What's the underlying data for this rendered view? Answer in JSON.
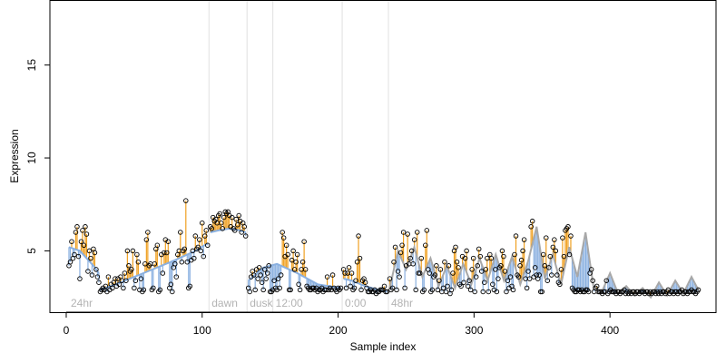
{
  "chart_data": {
    "type": "scatter",
    "title": "",
    "xlabel": "Sample index",
    "ylabel": "Expression",
    "xlim": [
      -12,
      478
    ],
    "ylim": [
      1.7,
      18.5
    ],
    "x_ticks": [
      0,
      100,
      200,
      300,
      400
    ],
    "y_ticks": [
      5,
      10,
      15
    ],
    "grid": false,
    "legend": "none",
    "colors": {
      "stem_above": "#f0a020",
      "stem_below": "#8ab0e0",
      "fit_line_early": "#8ab0e0",
      "fit_line_late": "#a8a8a8",
      "points": "#000000",
      "markers": "#e0e0e0",
      "annotations": "#b3b3b3"
    },
    "markers": [
      {
        "x": 105,
        "label": "dawn"
      },
      {
        "x": 133,
        "label": "dusk"
      },
      {
        "x": 152,
        "label": "12:00"
      },
      {
        "x": 203,
        "label": "0:00"
      },
      {
        "x": 237,
        "label": "48hr"
      }
    ],
    "start_label": {
      "x": 2,
      "label": "24hr"
    },
    "segments": [
      {
        "name": "",
        "x_start": 2,
        "x_end": 24,
        "y": [
          4.2,
          4.4,
          5.5,
          4.6,
          4.8,
          6.0,
          6.3,
          4.7,
          3.5,
          5.5,
          6.1,
          5.3,
          6.3,
          5.9,
          3.9,
          5.0,
          4.6,
          3.7,
          5.1,
          4.9,
          4.0,
          3.6,
          3.3
        ]
      },
      {
        "name": "",
        "x_start": 25,
        "x_end": 104,
        "y": [
          2.8,
          2.9,
          3.0,
          2.9,
          3.1,
          2.8,
          3.6,
          2.9,
          3.2,
          3.0,
          3.3,
          3.5,
          3.1,
          3.5,
          3.2,
          3.6,
          3.4,
          3.0,
          3.8,
          3.4,
          5.0,
          4.2,
          3.9,
          4.0,
          5.0,
          3.0,
          3.4,
          4.8,
          4.4,
          2.9,
          3.5,
          2.8,
          2.9,
          4.3,
          5.6,
          6.0,
          4.2,
          4.3,
          2.9,
          3.0,
          4.3,
          5.1,
          5.3,
          2.8,
          2.9,
          4.8,
          3.8,
          4.9,
          5.6,
          4.9,
          5.5,
          3.0,
          3.2,
          2.8,
          4.1,
          4.3,
          3.6,
          4.8,
          5.0,
          6.0,
          4.4,
          5.0,
          5.1,
          7.7,
          4.4,
          3.0,
          3.1,
          4.5,
          5.0,
          4.6,
          5.8,
          5.1,
          5.2,
          5.6,
          5.0,
          6.5,
          4.7,
          5.8,
          6.1,
          5.3
        ]
      },
      {
        "name": "",
        "x_start": 106,
        "x_end": 132,
        "y": [
          6.3,
          6.2,
          6.8,
          6.6,
          6.7,
          6.5,
          6.9,
          7.0,
          6.5,
          6.2,
          6.8,
          7.1,
          7.0,
          7.1,
          6.9,
          6.3,
          6.8,
          6.2,
          6.1,
          6.7,
          6.4,
          6.9,
          6.6,
          6.0,
          6.5,
          6.3,
          5.8
        ]
      },
      {
        "name": "",
        "x_start": 134,
        "x_end": 202,
        "y": [
          3.0,
          2.8,
          3.6,
          3.9,
          3.7,
          2.9,
          4.0,
          3.5,
          4.1,
          3.7,
          3.3,
          2.9,
          4.0,
          3.5,
          3.8,
          4.2,
          2.8,
          2.8,
          2.9,
          3.4,
          3.0,
          2.9,
          3.5,
          3.0,
          3.7,
          6.0,
          5.7,
          4.7,
          5.3,
          4.8,
          2.9,
          2.9,
          4.5,
          5.0,
          4.0,
          4.4,
          4.8,
          3.2,
          2.9,
          4.0,
          4.4,
          5.5,
          4.0,
          3.1,
          3.0,
          2.9,
          2.9,
          3.0,
          3.0,
          2.9,
          3.0,
          2.8,
          2.9,
          2.9,
          3.0,
          2.8,
          2.9,
          2.9,
          3.6,
          2.9,
          3.0,
          2.9,
          3.7,
          3.0,
          2.9,
          2.8,
          3.0,
          2.9,
          3.0
        ]
      },
      {
        "name": "",
        "x_start": 204,
        "x_end": 236,
        "y": [
          4.0,
          3.8,
          3.0,
          3.8,
          4.1,
          3.1,
          3.8,
          2.9,
          3.0,
          3.4,
          4.4,
          5.8,
          4.6,
          2.9,
          3.4,
          3.5,
          3.3,
          3.0,
          2.8,
          2.8,
          2.9,
          2.8,
          2.8,
          2.9,
          2.7,
          2.8,
          2.8,
          2.9,
          2.9,
          2.9,
          3.1,
          2.8,
          2.8
        ]
      },
      {
        "name": "",
        "x_start": 238,
        "x_end": 465,
        "y": [
          3.5,
          2.9,
          3.0,
          4.4,
          5.2,
          2.9,
          3.9,
          3.6,
          4.9,
          5.3,
          6.0,
          3.0,
          4.2,
          5.9,
          4.3,
          4.6,
          5.0,
          4.3,
          5.6,
          2.9,
          6.0,
          3.8,
          3.8,
          4.6,
          2.8,
          2.9,
          5.3,
          6.1,
          4.0,
          3.8,
          2.8,
          2.9,
          3.6,
          3.7,
          4.2,
          2.9,
          3.4,
          4.0,
          2.8,
          3.0,
          4.4,
          2.8,
          3.1,
          4.2,
          2.7,
          2.9,
          3.8,
          5.0,
          5.2,
          4.4,
          4.1,
          3.2,
          3.1,
          4.7,
          3.3,
          4.6,
          5.0,
          3.1,
          3.4,
          2.9,
          4.0,
          4.6,
          2.8,
          3.6,
          4.2,
          5.1,
          4.7,
          3.9,
          2.8,
          3.3,
          4.0,
          4.6,
          2.8,
          4.8,
          4.6,
          3.2,
          2.9,
          4.0,
          2.8,
          3.5,
          4.1,
          4.2,
          5.0,
          4.7,
          3.9,
          2.8,
          3.4,
          3.0,
          3.6,
          3.1,
          2.9,
          4.8,
          5.8,
          3.7,
          3.6,
          4.2,
          4.5,
          5.0,
          5.6,
          3.5,
          3.0,
          3.9,
          3.5,
          6.3,
          6.6,
          3.6,
          4.1,
          3.7,
          3.5,
          3.7,
          2.8,
          2.8,
          4.8,
          4.2,
          5.7,
          3.4,
          4.1,
          4.7,
          3.7,
          5.2,
          5.6,
          5.0,
          3.7,
          3.3,
          3.2,
          4.0,
          5.7,
          4.7,
          6.1,
          6.2,
          6.3,
          4.8,
          5.8,
          3.0,
          2.9,
          2.8,
          2.8,
          2.9,
          2.9,
          2.8,
          2.9,
          2.8,
          2.8,
          2.9,
          2.9,
          2.8,
          3.8,
          4.0,
          3.4,
          2.8,
          3.0,
          3.1,
          2.8,
          2.8,
          2.8,
          2.7,
          2.8,
          2.8,
          3.4,
          2.7,
          2.8,
          2.9,
          2.8,
          2.8,
          2.8,
          2.7,
          2.8,
          2.8,
          2.7,
          2.8,
          2.8,
          2.9,
          2.7,
          2.8,
          2.7,
          2.8,
          2.7,
          2.8,
          2.8,
          2.7,
          2.8,
          2.8,
          2.7,
          2.8,
          2.8,
          2.8,
          2.7,
          2.8,
          2.8,
          2.7,
          2.8,
          2.7,
          2.8,
          2.8,
          2.7,
          2.8,
          2.7,
          2.8,
          2.7,
          2.8,
          2.8,
          2.7,
          2.8,
          2.9,
          2.7,
          2.8,
          2.8,
          2.7,
          2.8,
          2.8,
          2.7,
          2.8,
          2.8,
          2.9,
          2.7,
          2.8,
          2.8,
          2.7,
          2.8,
          2.8,
          2.9,
          2.8,
          2.8,
          2.7,
          2.8,
          2.9
        ]
      }
    ],
    "fit": [
      {
        "name": "",
        "color": "fit_line_early",
        "x": [
          2,
          10,
          20,
          24
        ],
        "y": [
          5.2,
          5.0,
          4.2,
          3.8
        ]
      },
      {
        "name": "",
        "color": "fit_line_early",
        "x": [
          25,
          40,
          60,
          80,
          95,
          104
        ],
        "y": [
          2.9,
          3.3,
          3.9,
          4.5,
          5.0,
          5.4
        ]
      },
      {
        "name": "",
        "color": "fit_line_early",
        "x": [
          106,
          112,
          120,
          128,
          132
        ],
        "y": [
          6.0,
          6.1,
          6.2,
          6.1,
          6.0
        ]
      },
      {
        "name": "",
        "color": "fit_line_early",
        "x": [
          134,
          145,
          155,
          170,
          185,
          202
        ],
        "y": [
          3.4,
          4.1,
          4.3,
          3.8,
          3.2,
          3.0
        ]
      },
      {
        "name": "",
        "color": "fit_line_early",
        "x": [
          204,
          210,
          220,
          230,
          236
        ],
        "y": [
          3.5,
          3.4,
          3.1,
          2.9,
          2.8
        ]
      },
      {
        "name": "",
        "color": "fit_line_late",
        "x": [
          238,
          244,
          250,
          256,
          262,
          268,
          274,
          280,
          286,
          292,
          298,
          304,
          310,
          316,
          322,
          328,
          334,
          340,
          346,
          352,
          358,
          364,
          370,
          376,
          382,
          388,
          394,
          400,
          406,
          412,
          418,
          424,
          430,
          436,
          442,
          448,
          454,
          460,
          465
        ],
        "y": [
          3.0,
          5.0,
          4.0,
          5.2,
          3.6,
          4.6,
          3.1,
          4.2,
          3.0,
          4.3,
          3.2,
          4.6,
          3.4,
          4.8,
          3.4,
          4.7,
          3.2,
          4.5,
          6.3,
          3.5,
          4.8,
          3.2,
          5.2,
          3.6,
          6.0,
          3.0,
          2.8,
          3.8,
          2.7,
          3.1,
          2.6,
          3.0,
          2.5,
          3.3,
          2.6,
          3.4,
          2.7,
          3.6,
          2.9
        ]
      }
    ]
  }
}
